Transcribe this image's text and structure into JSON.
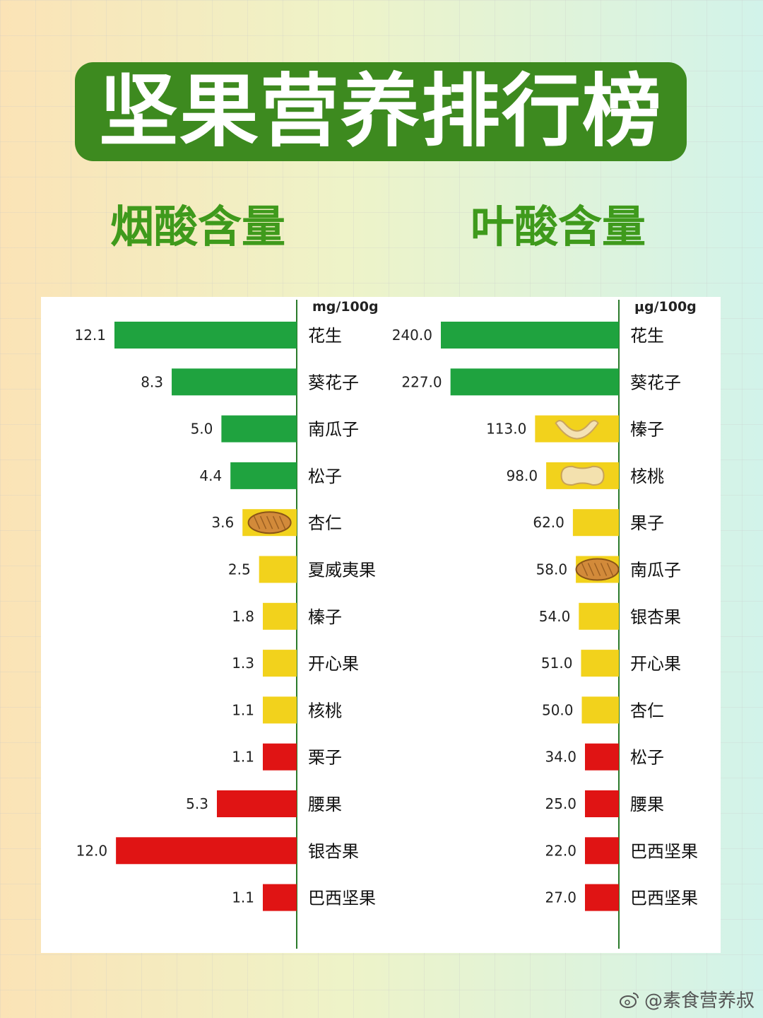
{
  "title": "坚果营养排行榜",
  "subtitle_left": "烟酸含量",
  "subtitle_right": "叶酸含量",
  "watermark": "@素食营养叔",
  "colors": {
    "green": "#1fa33f",
    "yellow": "#f2d21c",
    "red": "#e01414",
    "axis": "#2a7a2a",
    "title_bg": "#3d8a1f"
  },
  "chart_data": [
    {
      "type": "bar",
      "orientation": "horizontal",
      "unit": "mg/100g",
      "categories": [
        "花生",
        "葵花子",
        "南瓜子",
        "松子",
        "杏仁",
        "夏威夷果",
        "榛子",
        "开心果",
        "核桃",
        "栗子",
        "腰果",
        "银杏果",
        "巴西坚果"
      ],
      "values": [
        12.1,
        8.3,
        5.0,
        4.4,
        3.6,
        2.5,
        1.8,
        1.3,
        1.1,
        1.1,
        5.3,
        12.0,
        1.1
      ],
      "value_labels": [
        "12.1",
        "8.3",
        "5.0",
        "4.4",
        "3.6",
        "2.5",
        "1.8",
        "1.3",
        "1.1",
        "1.1",
        "5.3",
        "12.0",
        "1.1"
      ],
      "bar_colors": [
        "green",
        "green",
        "green",
        "green",
        "yellow",
        "yellow",
        "yellow",
        "yellow",
        "yellow",
        "red",
        "red",
        "red",
        "red"
      ],
      "icons": {
        "4": "almond-icon"
      }
    },
    {
      "type": "bar",
      "orientation": "horizontal",
      "unit": "μg/100g",
      "categories": [
        "花生",
        "葵花子",
        "榛子",
        "核桃",
        "果子",
        "南瓜子",
        "银杏果",
        "开心果",
        "杏仁",
        "松子",
        "腰果",
        "巴西坚果",
        "巴西坚果"
      ],
      "values": [
        240.0,
        227.0,
        113.0,
        98.0,
        62.0,
        58.0,
        54.0,
        51.0,
        50.0,
        34.0,
        25.0,
        22.0,
        27.0
      ],
      "value_labels": [
        "240.0",
        "227.0",
        "113.0",
        "98.0",
        "62.0",
        "58.0",
        "54.0",
        "51.0",
        "50.0",
        "34.0",
        "25.0",
        "22.0",
        "27.0"
      ],
      "bar_colors": [
        "green",
        "green",
        "yellow",
        "yellow",
        "yellow",
        "yellow",
        "yellow",
        "yellow",
        "yellow",
        "red",
        "red",
        "red",
        "red"
      ],
      "icons": {
        "2": "cashew-icon",
        "3": "peanut-icon",
        "5": "almond-icon"
      }
    }
  ]
}
